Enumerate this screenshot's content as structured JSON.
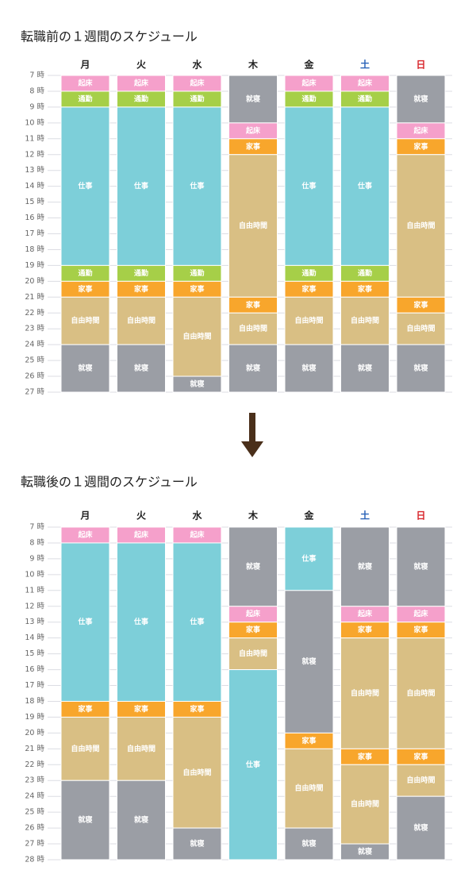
{
  "chart_data": [
    {
      "type": "timeline",
      "title": "転職前の１週間のスケジュール",
      "ylim": [
        7,
        27
      ],
      "yticks": [
        {
          "value": 7,
          "label": "7 時"
        },
        {
          "value": 8,
          "label": "8 時"
        },
        {
          "value": 9,
          "label": "9 時"
        },
        {
          "value": 10,
          "label": "10 時"
        },
        {
          "value": 11,
          "label": "11 時"
        },
        {
          "value": 12,
          "label": "12 時"
        },
        {
          "value": 13,
          "label": "13 時"
        },
        {
          "value": 14,
          "label": "14 時"
        },
        {
          "value": 15,
          "label": "15 時"
        },
        {
          "value": 16,
          "label": "16 時"
        },
        {
          "value": 17,
          "label": "17 時"
        },
        {
          "value": 18,
          "label": "18 時"
        },
        {
          "value": 19,
          "label": "19 時"
        },
        {
          "value": 20,
          "label": "20 時"
        },
        {
          "value": 21,
          "label": "21 時"
        },
        {
          "value": 22,
          "label": "22 時"
        },
        {
          "value": 23,
          "label": "23 時"
        },
        {
          "value": 24,
          "label": "24 時"
        },
        {
          "value": 25,
          "label": "25 時"
        },
        {
          "value": 26,
          "label": "26 時"
        },
        {
          "value": 27,
          "label": "27 時"
        }
      ],
      "days": [
        {
          "name": "月",
          "color": "#222222",
          "segments": [
            {
              "label": "起床",
              "start": 7,
              "end": 8,
              "color": "#f5a0cb"
            },
            {
              "label": "通勤",
              "start": 8,
              "end": 9,
              "color": "#a6cf48"
            },
            {
              "label": "仕事",
              "start": 9,
              "end": 19,
              "color": "#7dcfd9"
            },
            {
              "label": "通勤",
              "start": 19,
              "end": 20,
              "color": "#a6cf48"
            },
            {
              "label": "家事",
              "start": 20,
              "end": 21,
              "color": "#f8a62c"
            },
            {
              "label": "自由時間",
              "start": 21,
              "end": 24,
              "color": "#d9bf84"
            },
            {
              "label": "就寝",
              "start": 24,
              "end": 27,
              "color": "#9b9ea5"
            }
          ]
        },
        {
          "name": "火",
          "color": "#222222",
          "segments": [
            {
              "label": "起床",
              "start": 7,
              "end": 8,
              "color": "#f5a0cb"
            },
            {
              "label": "通勤",
              "start": 8,
              "end": 9,
              "color": "#a6cf48"
            },
            {
              "label": "仕事",
              "start": 9,
              "end": 19,
              "color": "#7dcfd9"
            },
            {
              "label": "通勤",
              "start": 19,
              "end": 20,
              "color": "#a6cf48"
            },
            {
              "label": "家事",
              "start": 20,
              "end": 21,
              "color": "#f8a62c"
            },
            {
              "label": "自由時間",
              "start": 21,
              "end": 24,
              "color": "#d9bf84"
            },
            {
              "label": "就寝",
              "start": 24,
              "end": 27,
              "color": "#9b9ea5"
            }
          ]
        },
        {
          "name": "水",
          "color": "#222222",
          "segments": [
            {
              "label": "起床",
              "start": 7,
              "end": 8,
              "color": "#f5a0cb"
            },
            {
              "label": "通勤",
              "start": 8,
              "end": 9,
              "color": "#a6cf48"
            },
            {
              "label": "仕事",
              "start": 9,
              "end": 19,
              "color": "#7dcfd9"
            },
            {
              "label": "通勤",
              "start": 19,
              "end": 20,
              "color": "#a6cf48"
            },
            {
              "label": "家事",
              "start": 20,
              "end": 21,
              "color": "#f8a62c"
            },
            {
              "label": "自由時間",
              "start": 21,
              "end": 26,
              "color": "#d9bf84"
            },
            {
              "label": "就寝",
              "start": 26,
              "end": 27,
              "color": "#9b9ea5"
            }
          ]
        },
        {
          "name": "木",
          "color": "#222222",
          "segments": [
            {
              "label": "就寝",
              "start": 7,
              "end": 10,
              "color": "#9b9ea5"
            },
            {
              "label": "起床",
              "start": 10,
              "end": 11,
              "color": "#f5a0cb"
            },
            {
              "label": "家事",
              "start": 11,
              "end": 12,
              "color": "#f8a62c"
            },
            {
              "label": "自由時間",
              "start": 12,
              "end": 21,
              "color": "#d9bf84"
            },
            {
              "label": "家事",
              "start": 21,
              "end": 22,
              "color": "#f8a62c"
            },
            {
              "label": "自由時間",
              "start": 22,
              "end": 24,
              "color": "#d9bf84"
            },
            {
              "label": "就寝",
              "start": 24,
              "end": 27,
              "color": "#9b9ea5"
            }
          ]
        },
        {
          "name": "金",
          "color": "#222222",
          "segments": [
            {
              "label": "起床",
              "start": 7,
              "end": 8,
              "color": "#f5a0cb"
            },
            {
              "label": "通勤",
              "start": 8,
              "end": 9,
              "color": "#a6cf48"
            },
            {
              "label": "仕事",
              "start": 9,
              "end": 19,
              "color": "#7dcfd9"
            },
            {
              "label": "通勤",
              "start": 19,
              "end": 20,
              "color": "#a6cf48"
            },
            {
              "label": "家事",
              "start": 20,
              "end": 21,
              "color": "#f8a62c"
            },
            {
              "label": "自由時間",
              "start": 21,
              "end": 24,
              "color": "#d9bf84"
            },
            {
              "label": "就寝",
              "start": 24,
              "end": 27,
              "color": "#9b9ea5"
            }
          ]
        },
        {
          "name": "土",
          "color": "#2a63b8",
          "segments": [
            {
              "label": "起床",
              "start": 7,
              "end": 8,
              "color": "#f5a0cb"
            },
            {
              "label": "通勤",
              "start": 8,
              "end": 9,
              "color": "#a6cf48"
            },
            {
              "label": "仕事",
              "start": 9,
              "end": 19,
              "color": "#7dcfd9"
            },
            {
              "label": "通勤",
              "start": 19,
              "end": 20,
              "color": "#a6cf48"
            },
            {
              "label": "家事",
              "start": 20,
              "end": 21,
              "color": "#f8a62c"
            },
            {
              "label": "自由時間",
              "start": 21,
              "end": 24,
              "color": "#d9bf84"
            },
            {
              "label": "就寝",
              "start": 24,
              "end": 27,
              "color": "#9b9ea5"
            }
          ]
        },
        {
          "name": "日",
          "color": "#d8262c",
          "segments": [
            {
              "label": "就寝",
              "start": 7,
              "end": 10,
              "color": "#9b9ea5"
            },
            {
              "label": "起床",
              "start": 10,
              "end": 11,
              "color": "#f5a0cb"
            },
            {
              "label": "家事",
              "start": 11,
              "end": 12,
              "color": "#f8a62c"
            },
            {
              "label": "自由時間",
              "start": 12,
              "end": 21,
              "color": "#d9bf84"
            },
            {
              "label": "家事",
              "start": 21,
              "end": 22,
              "color": "#f8a62c"
            },
            {
              "label": "自由時間",
              "start": 22,
              "end": 24,
              "color": "#d9bf84"
            },
            {
              "label": "就寝",
              "start": 24,
              "end": 27,
              "color": "#9b9ea5"
            }
          ]
        }
      ]
    },
    {
      "type": "timeline",
      "title": "転職後の１週間のスケジュール",
      "ylim": [
        7,
        28
      ],
      "yticks": [
        {
          "value": 7,
          "label": "7 時"
        },
        {
          "value": 8,
          "label": "8 時"
        },
        {
          "value": 9,
          "label": "9 時"
        },
        {
          "value": 10,
          "label": "10 時"
        },
        {
          "value": 11,
          "label": "11 時"
        },
        {
          "value": 12,
          "label": "12 時"
        },
        {
          "value": 13,
          "label": "13 時"
        },
        {
          "value": 14,
          "label": "14 時"
        },
        {
          "value": 15,
          "label": "15 時"
        },
        {
          "value": 16,
          "label": "16 時"
        },
        {
          "value": 17,
          "label": "17 時"
        },
        {
          "value": 18,
          "label": "18 時"
        },
        {
          "value": 19,
          "label": "19 時"
        },
        {
          "value": 20,
          "label": "20 時"
        },
        {
          "value": 21,
          "label": "21 時"
        },
        {
          "value": 22,
          "label": "22 時"
        },
        {
          "value": 23,
          "label": "23 時"
        },
        {
          "value": 24,
          "label": "24 時"
        },
        {
          "value": 25,
          "label": "25 時"
        },
        {
          "value": 26,
          "label": "26 時"
        },
        {
          "value": 27,
          "label": "27 時"
        },
        {
          "value": 28,
          "label": "28 時"
        }
      ],
      "days": [
        {
          "name": "月",
          "color": "#222222",
          "segments": [
            {
              "label": "起床",
              "start": 7,
              "end": 8,
              "color": "#f5a0cb"
            },
            {
              "label": "仕事",
              "start": 8,
              "end": 18,
              "color": "#7dcfd9"
            },
            {
              "label": "家事",
              "start": 18,
              "end": 19,
              "color": "#f8a62c"
            },
            {
              "label": "自由時間",
              "start": 19,
              "end": 23,
              "color": "#d9bf84"
            },
            {
              "label": "就寝",
              "start": 23,
              "end": 28,
              "color": "#9b9ea5"
            }
          ]
        },
        {
          "name": "火",
          "color": "#222222",
          "segments": [
            {
              "label": "起床",
              "start": 7,
              "end": 8,
              "color": "#f5a0cb"
            },
            {
              "label": "仕事",
              "start": 8,
              "end": 18,
              "color": "#7dcfd9"
            },
            {
              "label": "家事",
              "start": 18,
              "end": 19,
              "color": "#f8a62c"
            },
            {
              "label": "自由時間",
              "start": 19,
              "end": 23,
              "color": "#d9bf84"
            },
            {
              "label": "就寝",
              "start": 23,
              "end": 28,
              "color": "#9b9ea5"
            }
          ]
        },
        {
          "name": "水",
          "color": "#222222",
          "segments": [
            {
              "label": "起床",
              "start": 7,
              "end": 8,
              "color": "#f5a0cb"
            },
            {
              "label": "仕事",
              "start": 8,
              "end": 18,
              "color": "#7dcfd9"
            },
            {
              "label": "家事",
              "start": 18,
              "end": 19,
              "color": "#f8a62c"
            },
            {
              "label": "自由時間",
              "start": 19,
              "end": 26,
              "color": "#d9bf84"
            },
            {
              "label": "就寝",
              "start": 26,
              "end": 28,
              "color": "#9b9ea5"
            }
          ]
        },
        {
          "name": "木",
          "color": "#222222",
          "segments": [
            {
              "label": "就寝",
              "start": 7,
              "end": 12,
              "color": "#9b9ea5"
            },
            {
              "label": "起床",
              "start": 12,
              "end": 13,
              "color": "#f5a0cb"
            },
            {
              "label": "家事",
              "start": 13,
              "end": 14,
              "color": "#f8a62c"
            },
            {
              "label": "自由時間",
              "start": 14,
              "end": 16,
              "color": "#d9bf84"
            },
            {
              "label": "仕事",
              "start": 16,
              "end": 28,
              "color": "#7dcfd9"
            }
          ]
        },
        {
          "name": "金",
          "color": "#222222",
          "segments": [
            {
              "label": "仕事",
              "start": 7,
              "end": 11,
              "color": "#7dcfd9"
            },
            {
              "label": "就寝",
              "start": 11,
              "end": 20,
              "color": "#9b9ea5"
            },
            {
              "label": "家事",
              "start": 20,
              "end": 21,
              "color": "#f8a62c"
            },
            {
              "label": "自由時間",
              "start": 21,
              "end": 26,
              "color": "#d9bf84"
            },
            {
              "label": "就寝",
              "start": 26,
              "end": 28,
              "color": "#9b9ea5"
            }
          ]
        },
        {
          "name": "土",
          "color": "#2a63b8",
          "segments": [
            {
              "label": "就寝",
              "start": 7,
              "end": 12,
              "color": "#9b9ea5"
            },
            {
              "label": "起床",
              "start": 12,
              "end": 13,
              "color": "#f5a0cb"
            },
            {
              "label": "家事",
              "start": 13,
              "end": 14,
              "color": "#f8a62c"
            },
            {
              "label": "自由時間",
              "start": 14,
              "end": 21,
              "color": "#d9bf84"
            },
            {
              "label": "家事",
              "start": 21,
              "end": 22,
              "color": "#f8a62c"
            },
            {
              "label": "自由時間",
              "start": 22,
              "end": 27,
              "color": "#d9bf84"
            },
            {
              "label": "就寝",
              "start": 27,
              "end": 28,
              "color": "#9b9ea5"
            }
          ]
        },
        {
          "name": "日",
          "color": "#d8262c",
          "segments": [
            {
              "label": "就寝",
              "start": 7,
              "end": 12,
              "color": "#9b9ea5"
            },
            {
              "label": "起床",
              "start": 12,
              "end": 13,
              "color": "#f5a0cb"
            },
            {
              "label": "家事",
              "start": 13,
              "end": 14,
              "color": "#f8a62c"
            },
            {
              "label": "自由時間",
              "start": 14,
              "end": 21,
              "color": "#d9bf84"
            },
            {
              "label": "家事",
              "start": 21,
              "end": 22,
              "color": "#f8a62c"
            },
            {
              "label": "自由時間",
              "start": 22,
              "end": 24,
              "color": "#d9bf84"
            },
            {
              "label": "就寝",
              "start": 24,
              "end": 28,
              "color": "#9b9ea5"
            }
          ]
        }
      ]
    }
  ]
}
